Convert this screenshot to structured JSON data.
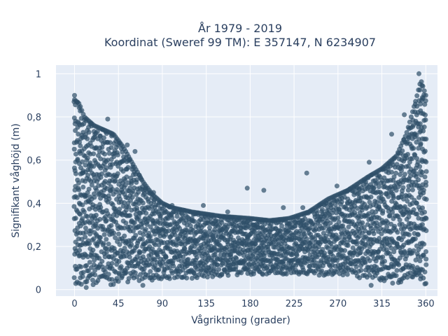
{
  "chart_data": {
    "type": "scatter",
    "title": [
      "År 1979 - 2019",
      "Koordinat (Sweref 99 TM): E 357147, N 6234907"
    ],
    "xlabel": "Vågriktning (grader)",
    "ylabel": "Signifikant våghöjd (m)",
    "xlim": [
      -19,
      372
    ],
    "ylim": [
      -0.03,
      1.04
    ],
    "x_ticks": [
      0,
      45,
      90,
      135,
      180,
      225,
      270,
      315,
      360
    ],
    "x_tick_labels": [
      "0",
      "45",
      "90",
      "135",
      "180",
      "225",
      "270",
      "315",
      "360"
    ],
    "y_ticks": [
      0,
      0.2,
      0.4,
      0.6,
      0.8,
      1
    ],
    "y_tick_labels": [
      "0",
      "0,2",
      "0,4",
      "0,6",
      "0,8",
      "1"
    ],
    "grid": true,
    "marker_color": "#2e4e68",
    "background_color": "#e5ecf6",
    "envelope": {
      "x": [
        0,
        5,
        10,
        20,
        30,
        40,
        50,
        60,
        70,
        80,
        90,
        100,
        120,
        150,
        180,
        200,
        220,
        240,
        260,
        280,
        300,
        315,
        330,
        340,
        350,
        355,
        360
      ],
      "y_upper": [
        0.88,
        0.86,
        0.8,
        0.76,
        0.74,
        0.72,
        0.66,
        0.58,
        0.5,
        0.44,
        0.4,
        0.38,
        0.36,
        0.34,
        0.33,
        0.32,
        0.33,
        0.36,
        0.42,
        0.46,
        0.52,
        0.56,
        0.62,
        0.72,
        0.88,
        0.97,
        0.9
      ],
      "y_lower": [
        0.02,
        0.02,
        0.02,
        0.02,
        0.03,
        0.02,
        0.03,
        0.04,
        0.04,
        0.04,
        0.05,
        0.05,
        0.05,
        0.06,
        0.07,
        0.07,
        0.07,
        0.07,
        0.06,
        0.06,
        0.05,
        0.04,
        0.03,
        0.03,
        0.03,
        0.02,
        0.02
      ]
    },
    "outliers": [
      {
        "x": 0,
        "y": 0.9
      },
      {
        "x": 17,
        "y": 0.77
      },
      {
        "x": 34,
        "y": 0.79
      },
      {
        "x": 54,
        "y": 0.67
      },
      {
        "x": 62,
        "y": 0.64
      },
      {
        "x": 81,
        "y": 0.45
      },
      {
        "x": 100,
        "y": 0.39
      },
      {
        "x": 132,
        "y": 0.39
      },
      {
        "x": 157,
        "y": 0.36
      },
      {
        "x": 177,
        "y": 0.47
      },
      {
        "x": 194,
        "y": 0.46
      },
      {
        "x": 214,
        "y": 0.38
      },
      {
        "x": 234,
        "y": 0.38
      },
      {
        "x": 238,
        "y": 0.54
      },
      {
        "x": 258,
        "y": 0.4
      },
      {
        "x": 269,
        "y": 0.48
      },
      {
        "x": 280,
        "y": 0.42
      },
      {
        "x": 289,
        "y": 0.47
      },
      {
        "x": 302,
        "y": 0.59
      },
      {
        "x": 321,
        "y": 0.57
      },
      {
        "x": 325,
        "y": 0.72
      },
      {
        "x": 338,
        "y": 0.81
      },
      {
        "x": 353,
        "y": 1.0
      },
      {
        "x": 304,
        "y": 0.02
      },
      {
        "x": 326,
        "y": 0.03
      },
      {
        "x": 12,
        "y": 0.01
      },
      {
        "x": 70,
        "y": 0.02
      }
    ]
  }
}
